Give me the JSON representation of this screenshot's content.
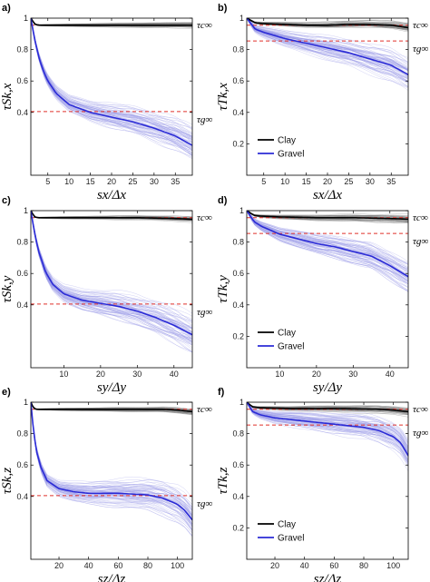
{
  "figure": {
    "title": ""
  },
  "colors": {
    "clay_mean": "#000000",
    "clay_realizations": "#777777",
    "gravel_mean": "#2b2bd6",
    "gravel_realizations": "#9a9ae6",
    "asymptote": "#e0302a",
    "axes": "#000000"
  },
  "asymptote_labels": {
    "clay": "τc∞",
    "gravel": "τg∞"
  },
  "chart_data": [
    {
      "id": "a",
      "panel_label": "a)",
      "type": "line",
      "xlabel": "sx/Δx",
      "ylabel": "τSk,x",
      "xlim": [
        1,
        39
      ],
      "ylim": [
        0,
        1
      ],
      "xticks": [
        5,
        10,
        15,
        20,
        25,
        30,
        35
      ],
      "xtick_labels": [
        "5",
        "10",
        "15",
        "20",
        "25",
        "30",
        "35"
      ],
      "yticks": [
        0.4,
        0.6,
        0.8,
        1
      ],
      "ytick_labels": [
        "0.4",
        "0.6",
        "0.8",
        "1"
      ],
      "legend": null,
      "asymptotes": {
        "clay": 0.955,
        "gravel": 0.405
      },
      "series": [
        {
          "name": "Clay",
          "x": [
            1,
            2,
            3,
            5,
            10,
            15,
            20,
            25,
            30,
            35,
            39
          ],
          "y": [
            1.0,
            0.96,
            0.955,
            0.955,
            0.955,
            0.955,
            0.955,
            0.955,
            0.955,
            0.955,
            0.955
          ],
          "spread": 0.01
        },
        {
          "name": "Gravel",
          "x": [
            1,
            2,
            3,
            4,
            5,
            7,
            10,
            15,
            20,
            25,
            30,
            35,
            39
          ],
          "y": [
            1.0,
            0.85,
            0.74,
            0.66,
            0.6,
            0.52,
            0.45,
            0.4,
            0.37,
            0.34,
            0.3,
            0.25,
            0.19
          ],
          "spread": 0.06
        }
      ]
    },
    {
      "id": "b",
      "panel_label": "b)",
      "type": "line",
      "xlabel": "sx/Δx",
      "ylabel": "τTk,x",
      "xlim": [
        1,
        39
      ],
      "ylim": [
        0,
        1
      ],
      "xticks": [
        5,
        10,
        15,
        20,
        25,
        30,
        35
      ],
      "xtick_labels": [
        "5",
        "10",
        "15",
        "20",
        "25",
        "30",
        "35"
      ],
      "yticks": [
        0.2,
        0.4,
        0.6,
        0.8,
        1
      ],
      "ytick_labels": [
        "0.2",
        "0.4",
        "0.6",
        "0.8",
        "1"
      ],
      "legend": [
        "Clay",
        "Gravel"
      ],
      "asymptotes": {
        "clay": 0.955,
        "gravel": 0.855
      },
      "series": [
        {
          "name": "Clay",
          "x": [
            1,
            3,
            5,
            10,
            15,
            20,
            25,
            30,
            35,
            39
          ],
          "y": [
            1.0,
            0.97,
            0.965,
            0.96,
            0.955,
            0.955,
            0.96,
            0.96,
            0.955,
            0.94
          ],
          "spread": 0.015
        },
        {
          "name": "Gravel",
          "x": [
            1,
            3,
            5,
            10,
            15,
            20,
            25,
            30,
            35,
            39
          ],
          "y": [
            1.0,
            0.93,
            0.91,
            0.87,
            0.84,
            0.81,
            0.78,
            0.74,
            0.7,
            0.64
          ],
          "spread": 0.05
        }
      ]
    },
    {
      "id": "c",
      "panel_label": "c)",
      "type": "line",
      "xlabel": "sy/Δy",
      "ylabel": "τSk,y",
      "xlim": [
        1,
        45
      ],
      "ylim": [
        0,
        1
      ],
      "xticks": [
        10,
        20,
        30,
        40
      ],
      "xtick_labels": [
        "10",
        "20",
        "30",
        "40"
      ],
      "yticks": [
        0.4,
        0.6,
        0.8,
        1
      ],
      "ytick_labels": [
        "0.4",
        "0.6",
        "0.8",
        "1"
      ],
      "legend": null,
      "asymptotes": {
        "clay": 0.955,
        "gravel": 0.405
      },
      "series": [
        {
          "name": "Clay",
          "x": [
            1,
            2,
            3,
            5,
            10,
            20,
            30,
            40,
            45
          ],
          "y": [
            1.0,
            0.96,
            0.955,
            0.955,
            0.955,
            0.955,
            0.955,
            0.95,
            0.945
          ],
          "spread": 0.01
        },
        {
          "name": "Gravel",
          "x": [
            1,
            2,
            3,
            5,
            7,
            10,
            15,
            20,
            25,
            30,
            35,
            40,
            45
          ],
          "y": [
            1.0,
            0.86,
            0.75,
            0.61,
            0.53,
            0.47,
            0.43,
            0.41,
            0.39,
            0.36,
            0.32,
            0.27,
            0.21
          ],
          "spread": 0.06
        }
      ]
    },
    {
      "id": "d",
      "panel_label": "d)",
      "type": "line",
      "xlabel": "sy/Δy",
      "ylabel": "τTk,y",
      "xlim": [
        1,
        45
      ],
      "ylim": [
        0,
        1
      ],
      "xticks": [
        10,
        20,
        30,
        40
      ],
      "xtick_labels": [
        "10",
        "20",
        "30",
        "40"
      ],
      "yticks": [
        0.2,
        0.4,
        0.6,
        0.8,
        1
      ],
      "ytick_labels": [
        "0.2",
        "0.4",
        "0.6",
        "0.8",
        "1"
      ],
      "legend": [
        "Clay",
        "Gravel"
      ],
      "asymptotes": {
        "clay": 0.955,
        "gravel": 0.855
      },
      "series": [
        {
          "name": "Clay",
          "x": [
            1,
            3,
            5,
            10,
            20,
            30,
            40,
            45
          ],
          "y": [
            1.0,
            0.97,
            0.965,
            0.96,
            0.955,
            0.955,
            0.95,
            0.945
          ],
          "spread": 0.015
        },
        {
          "name": "Gravel",
          "x": [
            1,
            3,
            5,
            10,
            15,
            20,
            25,
            30,
            35,
            40,
            45
          ],
          "y": [
            1.0,
            0.93,
            0.9,
            0.85,
            0.82,
            0.79,
            0.77,
            0.74,
            0.71,
            0.65,
            0.58
          ],
          "spread": 0.05
        }
      ]
    },
    {
      "id": "e",
      "panel_label": "e)",
      "type": "line",
      "xlabel": "sz/Δz",
      "ylabel": "τSk,z",
      "xlim": [
        1,
        110
      ],
      "ylim": [
        0,
        1
      ],
      "xticks": [
        20,
        40,
        60,
        80,
        100
      ],
      "xtick_labels": [
        "20",
        "40",
        "60",
        "80",
        "100"
      ],
      "yticks": [
        0.4,
        0.6,
        0.8,
        1
      ],
      "ytick_labels": [
        "0.4",
        "0.6",
        "0.8",
        "1"
      ],
      "legend": null,
      "asymptotes": {
        "clay": 0.955,
        "gravel": 0.405
      },
      "series": [
        {
          "name": "Clay",
          "x": [
            1,
            3,
            5,
            10,
            30,
            60,
            90,
            100,
            110
          ],
          "y": [
            1.0,
            0.96,
            0.955,
            0.955,
            0.955,
            0.955,
            0.955,
            0.95,
            0.94
          ],
          "spread": 0.01
        },
        {
          "name": "Gravel",
          "x": [
            1,
            3,
            5,
            8,
            12,
            20,
            30,
            40,
            60,
            80,
            90,
            100,
            105,
            110
          ],
          "y": [
            1.0,
            0.8,
            0.68,
            0.58,
            0.5,
            0.45,
            0.43,
            0.42,
            0.42,
            0.41,
            0.39,
            0.35,
            0.31,
            0.25
          ],
          "spread": 0.06
        }
      ]
    },
    {
      "id": "f",
      "panel_label": "f)",
      "type": "line",
      "xlabel": "sz/Δz",
      "ylabel": "τTk,z",
      "xlim": [
        1,
        110
      ],
      "ylim": [
        0,
        1
      ],
      "xticks": [
        20,
        40,
        60,
        80,
        100
      ],
      "xtick_labels": [
        "20",
        "40",
        "60",
        "80",
        "100"
      ],
      "yticks": [
        0.2,
        0.4,
        0.6,
        0.8,
        1
      ],
      "ytick_labels": [
        "0.2",
        "0.4",
        "0.6",
        "0.8",
        "1"
      ],
      "legend": [
        "Clay",
        "Gravel"
      ],
      "asymptotes": {
        "clay": 0.955,
        "gravel": 0.855
      },
      "series": [
        {
          "name": "Clay",
          "x": [
            1,
            5,
            10,
            30,
            60,
            90,
            100,
            110
          ],
          "y": [
            1.0,
            0.97,
            0.965,
            0.96,
            0.96,
            0.955,
            0.95,
            0.94
          ],
          "spread": 0.015
        },
        {
          "name": "Gravel",
          "x": [
            1,
            5,
            10,
            20,
            40,
            60,
            80,
            90,
            100,
            105,
            110
          ],
          "y": [
            1.0,
            0.94,
            0.92,
            0.9,
            0.88,
            0.86,
            0.84,
            0.82,
            0.78,
            0.74,
            0.66
          ],
          "spread": 0.05
        }
      ]
    }
  ]
}
